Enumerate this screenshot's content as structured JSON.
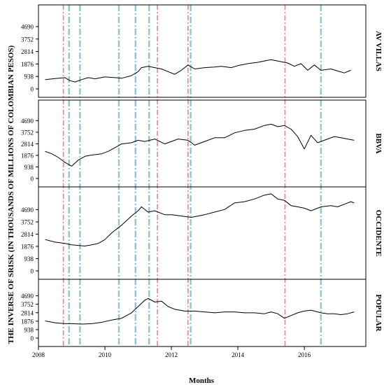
{
  "chart_data": {
    "type": "line",
    "ylabel": "THE INVERSE OF SRISK (IN THOUSANDS OF MILLIONS OF COLOMBIAN PESOS)",
    "xlabel": "Months",
    "x_ticks": [
      "2008",
      "2010",
      "2012",
      "2014",
      "2016"
    ],
    "y_ticks": [
      "0",
      "938",
      "1876",
      "2814",
      "3752",
      "4690"
    ],
    "xlim": [
      2008.0,
      2017.85
    ],
    "vlines": {
      "red_dashdot": [
        2008.75,
        2011.58,
        2012.5,
        2015.42
      ],
      "blue_dashdot": [
        2008.92,
        2009.25,
        2010.42,
        2010.92,
        2011.33,
        2012.58,
        2016.5
      ]
    },
    "colors": {
      "line": "#000000",
      "red_dashdot": "#e8828a",
      "blue_dashdot": "#8cc6d8"
    },
    "panels": [
      {
        "name": "AV VILLAS",
        "ylim": [
          0,
          5900
        ],
        "x": [
          2008.2,
          2008.5,
          2008.8,
          2008.95,
          2009.1,
          2009.3,
          2009.5,
          2009.7,
          2010.0,
          2010.3,
          2010.5,
          2010.8,
          2011.0,
          2011.1,
          2011.3,
          2011.5,
          2011.7,
          2011.9,
          2012.1,
          2012.3,
          2012.5,
          2012.7,
          2013.0,
          2013.3,
          2013.5,
          2013.8,
          2014.0,
          2014.3,
          2014.6,
          2015.0,
          2015.3,
          2015.5,
          2015.7,
          2015.9,
          2016.1,
          2016.3,
          2016.5,
          2016.8,
          2017.0,
          2017.2,
          2017.4
        ],
        "y": [
          700,
          780,
          850,
          620,
          520,
          700,
          850,
          760,
          900,
          850,
          800,
          1000,
          1300,
          1600,
          1700,
          1600,
          1500,
          1300,
          1100,
          1400,
          1800,
          1500,
          1600,
          1650,
          1700,
          1600,
          1750,
          1900,
          2000,
          2200,
          2050,
          1950,
          1700,
          1900,
          1400,
          1800,
          1400,
          1500,
          1350,
          1200,
          1400
        ]
      },
      {
        "name": "BBVA",
        "ylim": [
          0,
          5900
        ],
        "x": [
          2008.2,
          2008.4,
          2008.6,
          2008.8,
          2009.0,
          2009.2,
          2009.4,
          2009.6,
          2009.9,
          2010.1,
          2010.3,
          2010.5,
          2010.8,
          2011.0,
          2011.2,
          2011.5,
          2011.8,
          2012.0,
          2012.2,
          2012.5,
          2012.7,
          2013.0,
          2013.3,
          2013.6,
          2013.9,
          2014.2,
          2014.5,
          2014.8,
          2015.0,
          2015.2,
          2015.4,
          2015.6,
          2015.8,
          2016.0,
          2016.2,
          2016.4,
          2016.6,
          2016.9,
          2017.1,
          2017.3,
          2017.5
        ],
        "y": [
          2200,
          2000,
          1700,
          1300,
          1000,
          1500,
          1800,
          1900,
          2000,
          2200,
          2500,
          2800,
          2900,
          3100,
          3000,
          3200,
          2800,
          3000,
          3200,
          3100,
          2700,
          3000,
          3300,
          3300,
          3700,
          3900,
          4000,
          4300,
          4400,
          4200,
          4300,
          4000,
          3400,
          2400,
          3500,
          2900,
          3100,
          3400,
          3300,
          3200,
          3100
        ]
      },
      {
        "name": "OCCIDENTE",
        "ylim": [
          0,
          6000
        ],
        "x": [
          2008.2,
          2008.5,
          2008.8,
          2009.0,
          2009.2,
          2009.4,
          2009.6,
          2009.8,
          2010.0,
          2010.2,
          2010.5,
          2010.8,
          2011.0,
          2011.1,
          2011.3,
          2011.5,
          2011.8,
          2012.0,
          2012.3,
          2012.6,
          2013.0,
          2013.3,
          2013.6,
          2013.9,
          2014.2,
          2014.5,
          2014.8,
          2015.0,
          2015.2,
          2015.4,
          2015.6,
          2015.8,
          2016.0,
          2016.2,
          2016.5,
          2016.8,
          2017.0,
          2017.2,
          2017.4,
          2017.5
        ],
        "y": [
          2400,
          2200,
          2100,
          2000,
          1950,
          1900,
          2000,
          2100,
          2400,
          2900,
          3500,
          4200,
          4600,
          4900,
          4500,
          4600,
          4300,
          4300,
          4200,
          4100,
          4300,
          4500,
          4700,
          5200,
          5300,
          5500,
          5800,
          5900,
          5500,
          5400,
          5000,
          4900,
          4800,
          4600,
          4900,
          5000,
          4900,
          5100,
          5300,
          5200
        ]
      },
      {
        "name": "POPULAR",
        "ylim": [
          0,
          5900
        ],
        "x": [
          2008.2,
          2008.5,
          2008.8,
          2009.0,
          2009.3,
          2009.6,
          2009.9,
          2010.2,
          2010.5,
          2010.8,
          2011.0,
          2011.2,
          2011.3,
          2011.5,
          2011.7,
          2011.9,
          2012.1,
          2012.4,
          2012.7,
          2013.0,
          2013.3,
          2013.6,
          2013.9,
          2014.2,
          2014.5,
          2014.8,
          2015.0,
          2015.2,
          2015.4,
          2015.6,
          2015.8,
          2016.0,
          2016.2,
          2016.5,
          2016.7,
          2016.9,
          2017.1,
          2017.3,
          2017.5
        ],
        "y": [
          1900,
          1700,
          1600,
          1600,
          1550,
          1600,
          1750,
          2000,
          2200,
          2800,
          3500,
          4200,
          4400,
          4000,
          4100,
          3500,
          3200,
          3000,
          3000,
          2900,
          2800,
          2900,
          2900,
          2800,
          2800,
          2700,
          2900,
          2700,
          2200,
          2500,
          2800,
          3000,
          3100,
          2800,
          2700,
          2700,
          2600,
          2700,
          2900
        ]
      }
    ]
  }
}
